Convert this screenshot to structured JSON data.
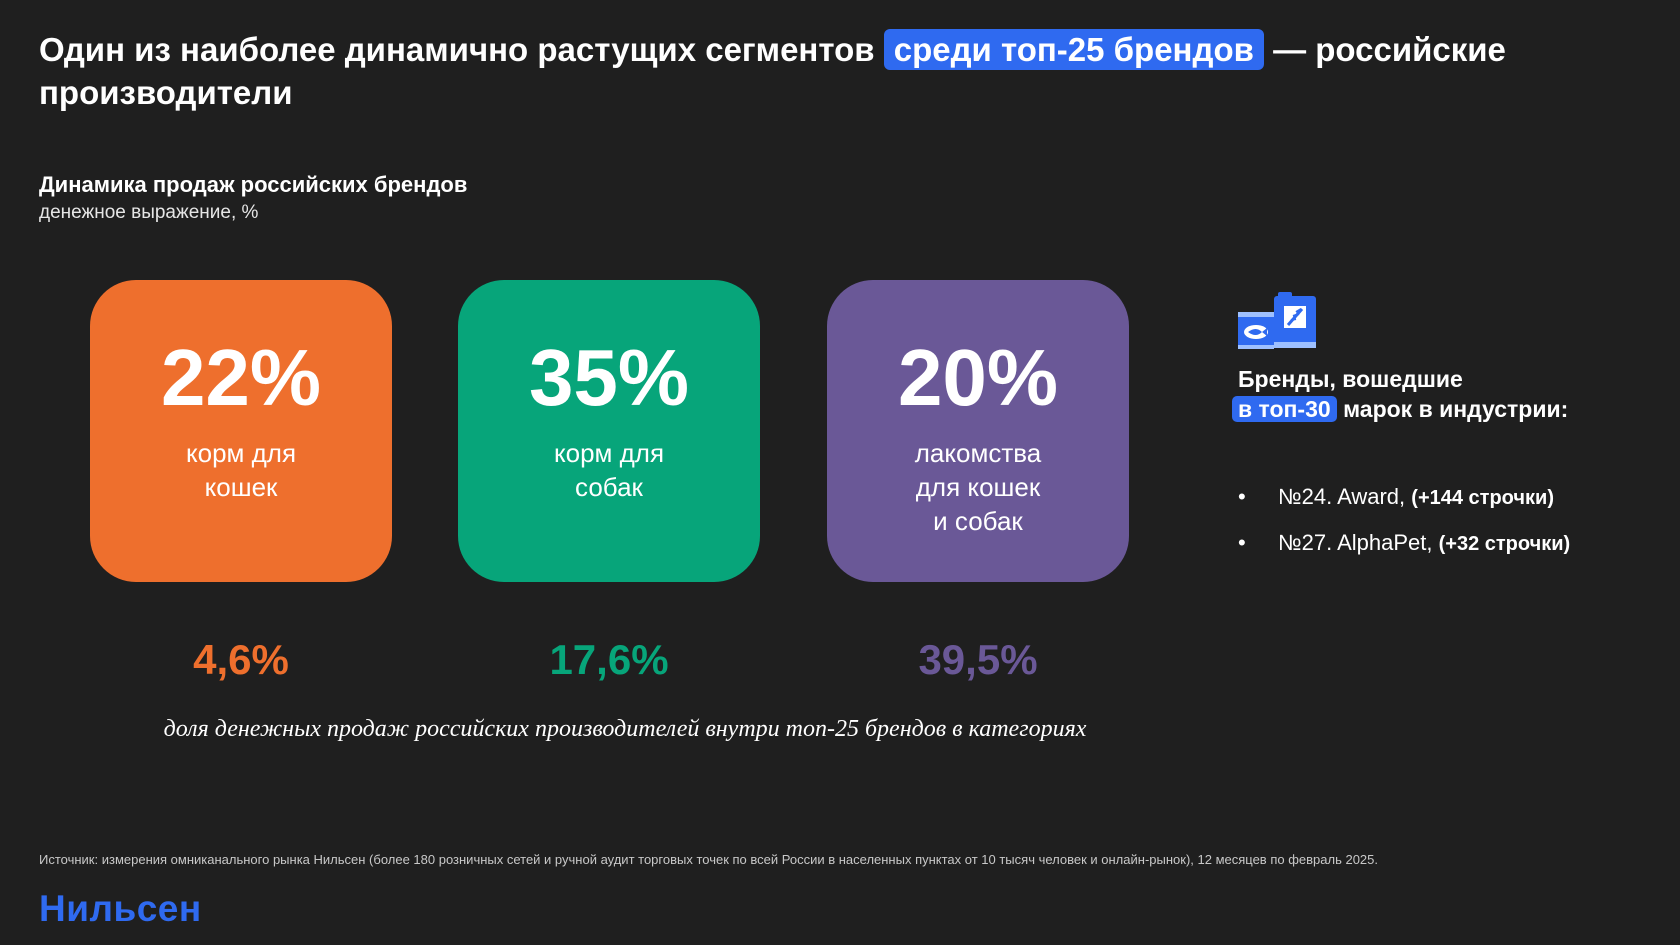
{
  "header": {
    "title_before": "Один из наиболее динамично растущих сегментов",
    "title_highlight": "среди топ-25 брендов",
    "title_after": "— российские производители"
  },
  "chart_header": {
    "title": "Динамика продаж российских брендов",
    "subtitle": "денежное выражение, %"
  },
  "cards": [
    {
      "value": "22%",
      "label": "корм для\nкошек",
      "share": "4,6%",
      "color": "#ee6f2d"
    },
    {
      "value": "35%",
      "label": "корм для\nсобак",
      "share": "17,6%",
      "color": "#07a57a"
    },
    {
      "value": "20%",
      "label": "лакомства\nдля кошек\nи собак",
      "share": "39,5%",
      "color": "#6a5897"
    }
  ],
  "caption": "доля денежных продаж российских производителей внутри топ-25 брендов в категориях",
  "brands": {
    "heading_line1": "Бренды, вошедшие",
    "heading_highlight": "в топ-30",
    "heading_rest": "марок в индустрии:",
    "items": [
      {
        "text": "№24. Award,",
        "delta": "(+144 строчки)"
      },
      {
        "text": "№27. AlphaPet,",
        "delta": "(+32 строчки)"
      }
    ]
  },
  "source": "Источник: измерения омниканального рынка Нильсен (более 180 розничных сетей и ручной аудит торговых точек по всей России в населенных пунктах от 10 тысяч человек и онлайн-рынок), 12 месяцев по февраль 2025.",
  "logo": "Нильсен",
  "colors": {
    "accent": "#2f6af0",
    "background": "#1f1f1f"
  }
}
